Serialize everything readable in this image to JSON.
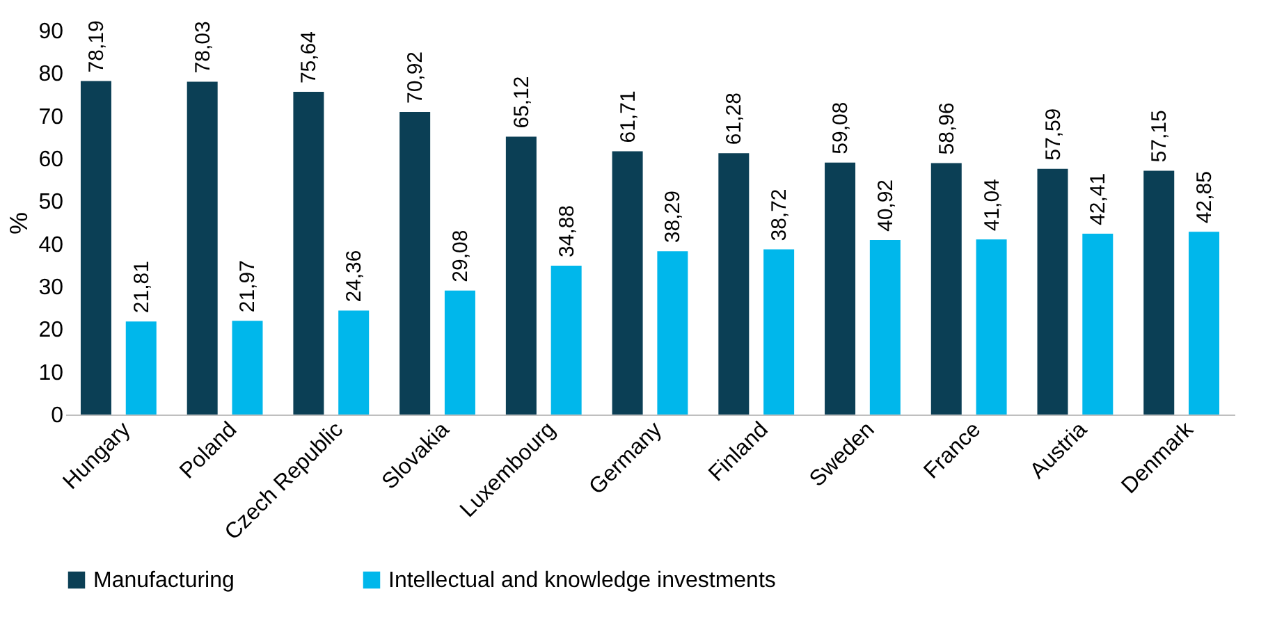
{
  "chart_data": {
    "type": "bar",
    "ylabel": "%",
    "categories": [
      "Hungary",
      "Poland",
      "Czech Republic",
      "Slovakia",
      "Luxembourg",
      "Germany",
      "Finland",
      "Sweden",
      "France",
      "Austria",
      "Denmark"
    ],
    "series": [
      {
        "name": "Manufacturing",
        "color": "#0b3f55",
        "values": [
          78.19,
          78.03,
          75.64,
          70.92,
          65.12,
          61.71,
          61.28,
          59.08,
          58.96,
          57.59,
          57.15
        ],
        "value_labels": [
          "78,19",
          "78,03",
          "75,64",
          "70,92",
          "65,12",
          "61,71",
          "61,28",
          "59,08",
          "58,96",
          "57,59",
          "57,15"
        ]
      },
      {
        "name": "Intellectual and knowledge investments",
        "color": "#00b7eb",
        "values": [
          21.81,
          21.97,
          24.36,
          29.08,
          34.88,
          38.29,
          38.72,
          40.92,
          41.04,
          42.41,
          42.85
        ],
        "value_labels": [
          "21,81",
          "21,97",
          "24,36",
          "29,08",
          "34,88",
          "38,29",
          "38,72",
          "40,92",
          "41,04",
          "42,41",
          "42,85"
        ]
      }
    ],
    "ylim": [
      0,
      90
    ],
    "yticks": [
      0,
      10,
      20,
      30,
      40,
      50,
      60,
      70,
      80,
      90
    ],
    "grid": false,
    "legend": "bottom"
  }
}
